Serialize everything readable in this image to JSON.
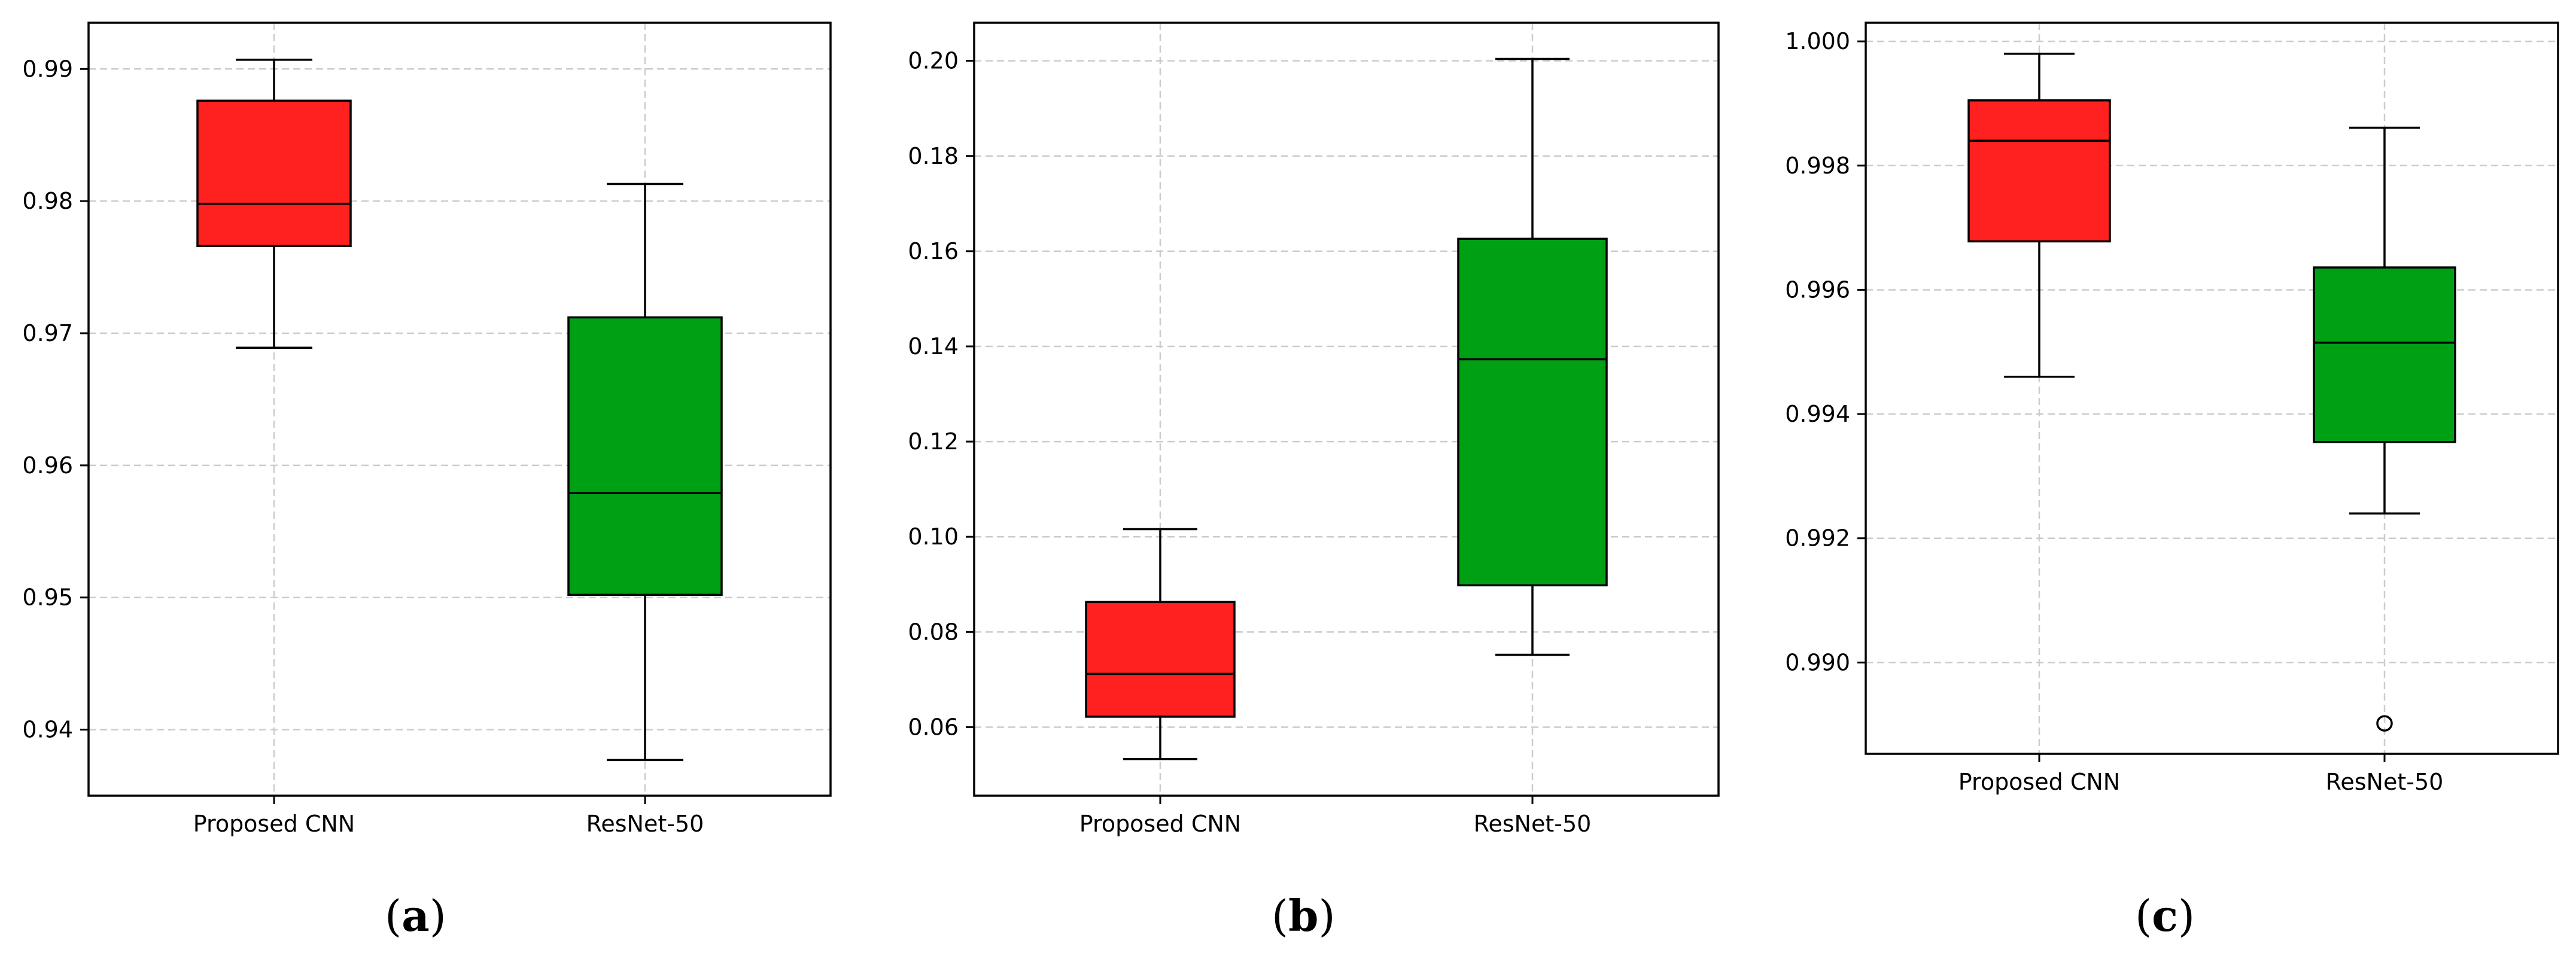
{
  "chart_data": [
    {
      "panel_label": "a",
      "type": "box",
      "categories": [
        "Proposed CNN",
        "ResNet-50"
      ],
      "ylim": [
        0.935,
        0.9935
      ],
      "yticks": [
        "0.94",
        "0.95",
        "0.96",
        "0.97",
        "0.98",
        "0.99"
      ],
      "grid": true,
      "boxes": [
        {
          "name": "Proposed CNN",
          "color": "#ff2020",
          "whisker_low": 0.9689,
          "q1": 0.9766,
          "median": 0.9798,
          "q3": 0.9876,
          "whisker_high": 0.9907,
          "outliers": []
        },
        {
          "name": "ResNet-50",
          "color": "#00a015",
          "whisker_low": 0.9377,
          "q1": 0.9502,
          "median": 0.9579,
          "q3": 0.9712,
          "whisker_high": 0.9813,
          "outliers": []
        }
      ]
    },
    {
      "panel_label": "b",
      "type": "box",
      "categories": [
        "Proposed CNN",
        "ResNet-50"
      ],
      "ylim": [
        0.0456,
        0.208
      ],
      "yticks": [
        "0.06",
        "0.08",
        "0.10",
        "0.12",
        "0.14",
        "0.16",
        "0.18",
        "0.20"
      ],
      "grid": true,
      "boxes": [
        {
          "name": "Proposed CNN",
          "color": "#ff2020",
          "whisker_low": 0.0533,
          "q1": 0.0622,
          "median": 0.0712,
          "q3": 0.0863,
          "whisker_high": 0.1016,
          "outliers": []
        },
        {
          "name": "ResNet-50",
          "color": "#00a015",
          "whisker_low": 0.0752,
          "q1": 0.0898,
          "median": 0.1373,
          "q3": 0.1626,
          "whisker_high": 0.2004,
          "outliers": []
        }
      ]
    },
    {
      "panel_label": "c",
      "type": "box",
      "categories": [
        "Proposed CNN",
        "ResNet-50"
      ],
      "ylim": [
        0.98853,
        1.0003
      ],
      "yticks": [
        "0.990",
        "0.992",
        "0.994",
        "0.996",
        "0.998",
        "1.000"
      ],
      "grid": true,
      "boxes": [
        {
          "name": "Proposed CNN",
          "color": "#ff2020",
          "whisker_low": 0.9946,
          "q1": 0.99678,
          "median": 0.9984,
          "q3": 0.99905,
          "whisker_high": 0.9998,
          "outliers": []
        },
        {
          "name": "ResNet-50",
          "color": "#00a015",
          "whisker_low": 0.9924,
          "q1": 0.99355,
          "median": 0.99515,
          "q3": 0.99636,
          "whisker_high": 0.99861,
          "outliers": [
            0.98902
          ]
        }
      ]
    }
  ]
}
